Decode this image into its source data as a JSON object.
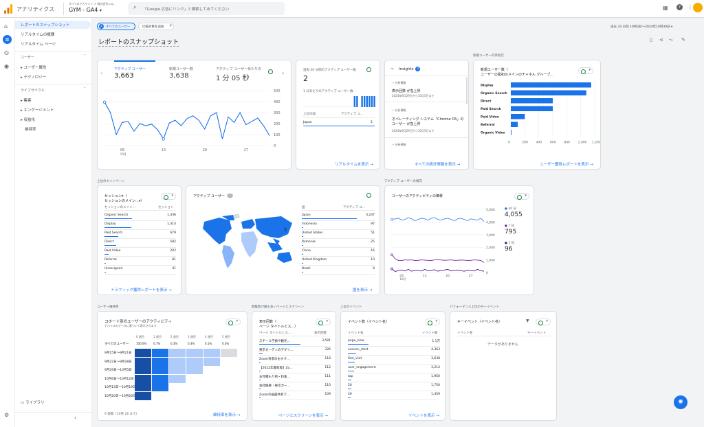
{
  "header": {
    "app_title": "アナリティクス",
    "breadcrumb": "すべてのアカウント > 株式会社ジム",
    "property": "GYM - GA4",
    "search_placeholder": "「Google 広告にリンク」と検索してみてください"
  },
  "nav": {
    "items": [
      {
        "label": "レポートのスナップショット"
      },
      {
        "label": "リアルタイムの概要"
      },
      {
        "label": "リアルタイム ページ"
      }
    ],
    "user_section": "ユーザー",
    "user_items": [
      {
        "label": "ユーザー属性"
      },
      {
        "label": "テクノロジー"
      }
    ],
    "lifecycle_section": "ライフサイクル",
    "lifecycle_items": [
      {
        "label": "集客"
      },
      {
        "label": "エンゲージメント"
      },
      {
        "label": "収益化"
      },
      {
        "label": "維持率"
      }
    ],
    "library": "ライブラリ"
  },
  "toolbar": {
    "segment_chip": "すべてのユーザー",
    "compare_chip": "比較対象を追加",
    "date_prefix": "過去 28 日間",
    "date_range": "10月3日～2024年10月30日"
  },
  "page_title": "レポートのスナップショット",
  "metrics_card": {
    "metrics": [
      {
        "label": "アクティブ ユーザー",
        "value": "3,663"
      },
      {
        "label": "新規ユーザー数",
        "value": "3,638"
      },
      {
        "label": "アクティブ ユーザーあたりの",
        "value": "1 分 05 秒"
      }
    ],
    "y_ticks": [
      "500",
      "400",
      "300",
      "200",
      "100",
      "0"
    ],
    "x_ticks": [
      "06\n10月",
      "13",
      "20",
      "27"
    ]
  },
  "realtime_card": {
    "title": "過去 30 分間のアクティブ ユーザー数",
    "value": "2",
    "per_min": "1 分あたりのアクティブ ユーザー数",
    "col1": "上位の国",
    "col2": "アクティブ ユ...",
    "rows": [
      {
        "country": "Japan",
        "value": "2"
      }
    ],
    "link": "リアルタイムを表示"
  },
  "insights_card": {
    "title": "Insights",
    "badge": "3",
    "items": [
      {
        "tag": "分析情報",
        "text": "表示回数 が急上昇",
        "date": "2024年9月29日から10月5日まで"
      },
      {
        "tag": "分析情報",
        "text": "オペレーティング システム「Chrome OS」のユーザー が急上昇",
        "date": "2024年9月29日から10月5日まで"
      },
      {
        "tag": "分析情報",
        "text": "",
        "date": ""
      }
    ],
    "link": "すべての統計情報を表示"
  },
  "new_user_section": "新規ユーザーの参照元",
  "new_user_card": {
    "title": "新規ユーザー数（",
    "subtitle": "ユーザーの最初のメインのチャネル グループ...",
    "link": "ユーザー獲得レポートを表示"
  },
  "campaign_section": "上位のキャンペーン",
  "sessions_card": {
    "title": "セッション▾（",
    "subtitle": "セッションのメイン...▾）",
    "col1": "セッションのメイン...",
    "col2": "セッション",
    "rows": [
      {
        "label": "Organic Search",
        "value": "1,336"
      },
      {
        "label": "Display",
        "value": "1,314"
      },
      {
        "label": "Paid Search",
        "value": "679"
      },
      {
        "label": "Direct",
        "value": "582"
      },
      {
        "label": "Paid Video",
        "value": "202"
      },
      {
        "label": "Referral",
        "value": "81"
      },
      {
        "label": "Unassigned",
        "value": "41"
      }
    ],
    "link": "トラフィック獲得レポートを表示"
  },
  "country_card": {
    "title": "アクティブ ユーザー（国）",
    "col1": "国",
    "col2": "アクティブ ユ...",
    "rows": [
      {
        "label": "Japan",
        "value": "3,247"
      },
      {
        "label": "Indonesia",
        "value": "97"
      },
      {
        "label": "United States",
        "value": "51"
      },
      {
        "label": "Romania",
        "value": "25"
      },
      {
        "label": "China",
        "value": "16"
      },
      {
        "label": "United Kingdom",
        "value": "10"
      },
      {
        "label": "Brazil",
        "value": "8"
      }
    ],
    "link": "国を表示"
  },
  "trend_section": "アクティブ ユーザーの傾向",
  "trend_card": {
    "title": "ユーザーのアクティビティの推移",
    "y_ticks": [
      "5,000",
      "4,000",
      "3,000",
      "2,000",
      "1,000",
      "0"
    ],
    "x_ticks": [
      "06\n10月",
      "13",
      "20",
      "27"
    ],
    "legend": [
      {
        "label": "30 日",
        "value": "4,055"
      },
      {
        "label": "7 日",
        "value": "795"
      },
      {
        "label": "1 日",
        "value": "96"
      }
    ]
  },
  "retention_section": "ユーザー維持率",
  "cohort_card": {
    "title": "コホート別のユーザーのアクティビティ",
    "subtitle": "デバイスのデータに基づいて表示されます",
    "weeks": [
      "0 週目",
      "1 週目",
      "2 週目",
      "3 週目",
      "4 週目",
      "5 週目"
    ],
    "all_label": "すべてのユーザー",
    "all_values": [
      "100.0%",
      "0.7%",
      "0.3%",
      "0.3%",
      "0.1%",
      "0.0%"
    ],
    "cohorts": [
      "9月15日～9月21日",
      "9月22日～9月28日",
      "9月29日～10月5日",
      "10月6日～10月12日",
      "10月13日～10月19日",
      "10月20日～10月26日"
    ],
    "footer": "6 週間（10月 26 まで）",
    "link": "維持率を表示"
  },
  "pages_section": "閲覧数が最も多いページとスクリーン",
  "pages_card": {
    "title": "表示回数（",
    "subtitle": "ページ タイトルとス...）",
    "col1": "ページ タイトルとス...",
    "col2": "表示回数",
    "rows": [
      {
        "label": "スチール学員や観光...",
        "value": "3,581"
      },
      {
        "label": "東京ガーデンのデザイ...",
        "value": "326"
      },
      {
        "label": "Zoom背景のおすす...",
        "value": "118"
      },
      {
        "label": "【2022年最新版】Zo...",
        "value": "112"
      },
      {
        "label": "お見積もり例・料金...",
        "value": "111"
      },
      {
        "label": "会社概要｜東京ガー...",
        "value": "110"
      },
      {
        "label": "Zoomの画面共有で...",
        "value": "109"
      }
    ],
    "link": "ページとスクリーンを表示"
  },
  "events_section": "上位のイベント",
  "events_card": {
    "title": "イベント数（イベント名）",
    "col1": "イベント名",
    "col2": "イベント数",
    "rows": [
      {
        "label": "page_view",
        "value": "1.1万"
      },
      {
        "label": "session_start",
        "value": "4,363"
      },
      {
        "label": "first_visit",
        "value": "3,638"
      },
      {
        "label": "user_engagement",
        "value": "3,214"
      },
      {
        "label": "tap",
        "value": "1,950"
      },
      {
        "label": "20",
        "value": "1,750"
      },
      {
        "label": "40",
        "value": "1,459"
      }
    ],
    "link": "イベントを表示"
  },
  "key_events_section": "パフォーマンス上位のキーイベント",
  "key_events_card": {
    "title": "キーイベント（イベント名）",
    "col1": "イベント名",
    "col2": "キーイベント",
    "empty": "データがありません"
  },
  "chart_data": [
    {
      "type": "line",
      "title": "アクティブ ユーザー",
      "x_ticks": [
        "06 10月",
        "13",
        "20",
        "27"
      ],
      "ylim": [
        0,
        500
      ],
      "series": [
        {
          "name": "アクティブ ユーザー",
          "values": [
            395,
            300,
            100,
            210,
            220,
            130,
            200,
            180,
            195,
            145,
            60,
            205,
            230,
            180,
            245,
            270,
            230,
            150,
            270,
            300,
            60,
            260,
            210,
            300,
            190,
            220,
            250,
            180,
            90
          ]
        }
      ]
    },
    {
      "type": "bar",
      "title": "1 分あたりのアクティブ ユーザー数",
      "values": [
        0,
        0,
        0,
        0,
        0,
        0,
        0,
        0,
        0,
        0,
        0,
        0,
        0,
        0,
        0,
        0,
        0,
        0,
        0,
        0,
        0,
        1,
        1,
        0,
        1,
        1,
        1,
        1,
        1,
        1
      ]
    },
    {
      "type": "bar",
      "orientation": "horizontal",
      "title": "新規ユーザー数",
      "categories": [
        "Display",
        "Organic Search",
        "Direct",
        "Paid Search",
        "Paid Video",
        "Referral",
        "Organic Video"
      ],
      "values": [
        1150,
        1080,
        600,
        600,
        200,
        100,
        5
      ],
      "x_ticks": [
        "0",
        "200",
        "400",
        "600",
        "800",
        "1,000",
        "1,200"
      ],
      "xlim": [
        0,
        1200
      ]
    },
    {
      "type": "line",
      "title": "ユーザーのアクティビティの推移",
      "ylim": [
        0,
        5000
      ],
      "x_ticks": [
        "06 10月",
        "13",
        "20",
        "27"
      ],
      "series": [
        {
          "name": "30 日",
          "values": [
            4200,
            4250,
            4300,
            4150,
            4200,
            4350,
            4250,
            4100,
            4200,
            4300,
            4250,
            4150,
            4300,
            4350,
            4200,
            4150,
            4250,
            4300,
            4200,
            4100,
            4250,
            4300,
            4200,
            4100,
            4250,
            4200,
            4150,
            4300,
            4055
          ]
        },
        {
          "name": "7 日",
          "values": [
            1400,
            1100,
            950,
            950,
            1000,
            980,
            1000,
            950,
            960,
            1000,
            980,
            960,
            950,
            1000,
            1010,
            990,
            970,
            980,
            1000,
            960,
            970,
            990,
            980,
            950,
            960,
            1000,
            980,
            960,
            795
          ]
        },
        {
          "name": "1 日",
          "values": [
            300,
            80,
            150,
            200,
            120,
            250,
            100,
            200,
            150,
            120,
            250,
            130,
            180,
            220,
            110,
            150,
            200,
            250,
            120,
            180,
            200,
            150,
            100,
            200,
            160,
            120,
            250,
            150,
            96
          ]
        }
      ]
    },
    {
      "type": "heatmap",
      "title": "コホート別のユーザーのアクティビティ",
      "rows": [
        "9月15日～9月21日",
        "9月22日～9月28日",
        "9月29日～10月5日",
        "10月6日～10月12日",
        "10月13日～10月19日",
        "10月20日～10月26日"
      ],
      "columns": [
        "0 週目",
        "1 週目",
        "2 週目",
        "3 週目",
        "4 週目",
        "5 週目"
      ],
      "levels": [
        [
          1,
          0.7,
          0.3,
          0.3,
          0.3,
          0.1
        ],
        [
          1,
          0.7,
          0.3,
          0.3,
          0.3,
          null
        ],
        [
          1,
          0.7,
          0.3,
          0.3,
          null,
          null
        ],
        [
          1,
          0.7,
          0.3,
          null,
          null,
          null
        ],
        [
          1,
          0.7,
          null,
          null,
          null,
          null
        ],
        [
          1,
          null,
          null,
          null,
          null,
          null
        ]
      ]
    }
  ]
}
